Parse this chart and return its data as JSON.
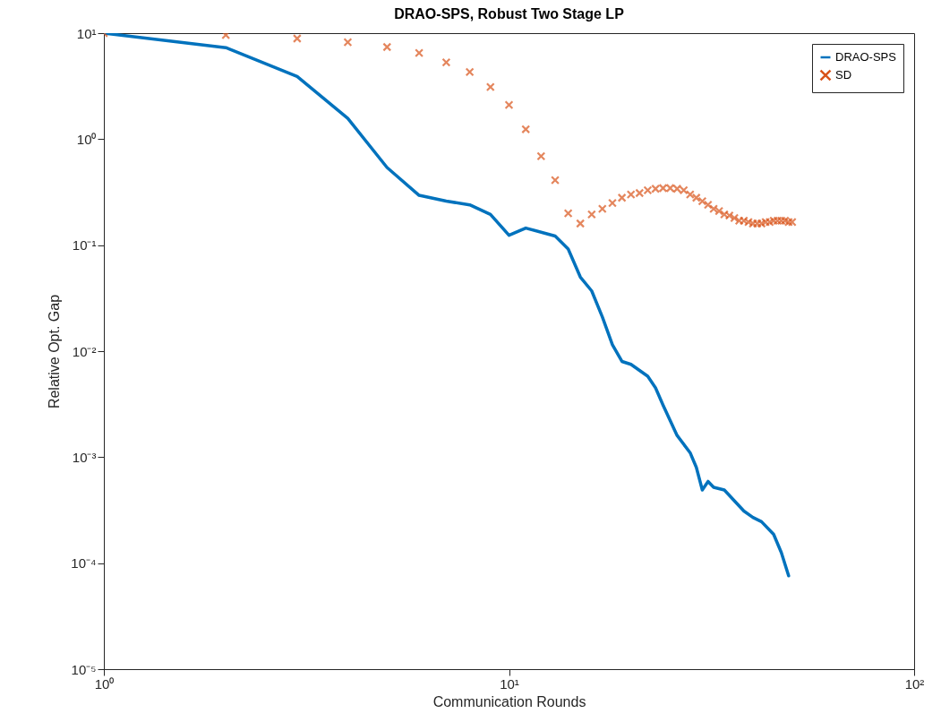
{
  "chart_data": {
    "type": "line",
    "title": "DRAO-SPS, Robust Two Stage LP",
    "xlabel": "Communication Rounds",
    "ylabel": "Relative Opt. Gap",
    "log": "xy",
    "grid": false,
    "legend": "top right",
    "xlim": [
      1,
      100
    ],
    "xticks": [
      {
        "value": 1,
        "label": "10⁰"
      },
      {
        "value": 10,
        "label": "10¹"
      },
      {
        "value": 100,
        "label": "10²"
      }
    ],
    "ylim": [
      1e-05,
      10
    ],
    "yticks": [
      {
        "value": 1e-05,
        "label": "10⁻⁵"
      },
      {
        "value": 0.0001,
        "label": "10⁻⁴"
      },
      {
        "value": 0.001,
        "label": "10⁻³"
      },
      {
        "value": 0.01,
        "label": "10⁻²"
      },
      {
        "value": 0.1,
        "label": "10⁻¹"
      },
      {
        "value": 1,
        "label": "10⁰"
      },
      {
        "value": 10,
        "label": "10¹"
      }
    ],
    "series": [
      {
        "name": "DRAO-SPS",
        "line_style": "solid",
        "color": "#0072bd",
        "x": [
          1,
          2,
          3,
          4,
          5,
          6,
          7,
          8,
          9,
          10,
          11,
          13,
          14,
          15,
          16,
          17,
          18,
          19,
          20,
          22,
          23,
          24,
          26,
          28,
          29,
          30,
          31,
          32,
          34,
          38,
          40,
          42,
          45,
          47,
          49
        ],
        "values": [
          10,
          7.3,
          3.9,
          1.57,
          0.54,
          0.295,
          0.26,
          0.24,
          0.195,
          0.124,
          0.145,
          0.122,
          0.092,
          0.05,
          0.037,
          0.021,
          0.0115,
          0.008,
          0.0075,
          0.0058,
          0.0045,
          0.0031,
          0.0016,
          0.0011,
          0.0008,
          0.00049,
          0.00059,
          0.00052,
          0.00049,
          0.00031,
          0.00027,
          0.000246,
          0.000187,
          0.000126,
          7.6e-05
        ]
      },
      {
        "name": "SD",
        "type": "scatter",
        "marker": "cross",
        "color": "#d95319",
        "x": [
          1,
          2,
          3,
          4,
          5,
          6,
          7,
          8,
          9,
          10,
          11,
          12,
          13,
          14,
          15,
          16,
          17,
          18,
          19,
          20,
          21,
          22,
          23,
          24,
          25,
          26,
          27,
          28,
          29,
          30,
          31,
          32,
          33,
          34,
          35,
          36,
          37,
          38,
          39,
          40,
          41,
          42,
          43,
          44,
          45,
          46,
          47,
          48,
          49,
          50
        ],
        "values": [
          10,
          9.6,
          8.9,
          8.2,
          7.4,
          6.5,
          5.3,
          4.3,
          3.1,
          2.1,
          1.24,
          0.69,
          0.41,
          0.2,
          0.16,
          0.195,
          0.22,
          0.25,
          0.28,
          0.3,
          0.31,
          0.33,
          0.34,
          0.345,
          0.345,
          0.34,
          0.33,
          0.3,
          0.28,
          0.26,
          0.24,
          0.22,
          0.21,
          0.195,
          0.19,
          0.18,
          0.17,
          0.17,
          0.165,
          0.16,
          0.16,
          0.16,
          0.165,
          0.165,
          0.17,
          0.17,
          0.17,
          0.17,
          0.165,
          0.165
        ]
      }
    ]
  }
}
